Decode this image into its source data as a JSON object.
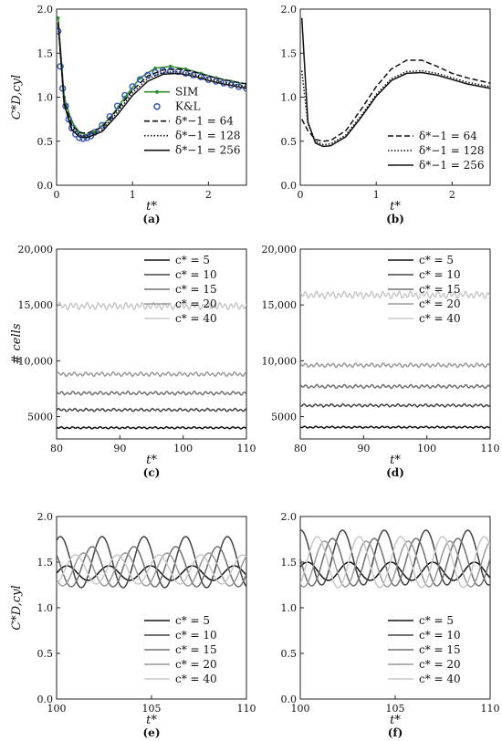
{
  "chart_data": [
    {
      "panel_label": "(a)",
      "type": "line",
      "xlabel": "t*",
      "ylabel": "C*D,cyl",
      "xlim": [
        0,
        2.5
      ],
      "ylim": [
        0,
        2.0
      ],
      "xticks": [
        "0",
        "1",
        "2"
      ],
      "yticks": [
        "0.0",
        "0.5",
        "1.0",
        "1.5",
        "2.0"
      ],
      "legend_position": "middle-right",
      "series": [
        {
          "name": "SIM",
          "color": "#2e8b2e",
          "style": "solid-marker",
          "x": [
            0.02,
            0.1,
            0.2,
            0.3,
            0.4,
            0.5,
            0.7,
            0.9,
            1.1,
            1.3,
            1.5,
            1.7,
            1.9,
            2.1,
            2.3,
            2.5
          ],
          "y": [
            1.9,
            1.0,
            0.72,
            0.6,
            0.57,
            0.6,
            0.76,
            1.0,
            1.22,
            1.33,
            1.35,
            1.32,
            1.27,
            1.22,
            1.18,
            1.15
          ]
        },
        {
          "name": "K&L",
          "color": "#3355bb",
          "style": "circles",
          "x": [
            0.02,
            0.05,
            0.08,
            0.12,
            0.16,
            0.2,
            0.25,
            0.3,
            0.35,
            0.4,
            0.45,
            0.5,
            0.6,
            0.7,
            0.8,
            0.9,
            1.0,
            1.1,
            1.2,
            1.3,
            1.4,
            1.5,
            1.6,
            1.7,
            1.8,
            1.9,
            2.0,
            2.1,
            2.2,
            2.3,
            2.4,
            2.5
          ],
          "y": [
            1.75,
            1.35,
            1.1,
            0.9,
            0.75,
            0.65,
            0.58,
            0.54,
            0.53,
            0.54,
            0.56,
            0.6,
            0.68,
            0.78,
            0.9,
            1.02,
            1.12,
            1.2,
            1.25,
            1.28,
            1.3,
            1.3,
            1.29,
            1.27,
            1.25,
            1.23,
            1.2,
            1.18,
            1.16,
            1.14,
            1.12,
            1.1
          ]
        },
        {
          "name": "δ*−1 = 64",
          "color": "#111111",
          "style": "dashed",
          "x": [
            0.02,
            0.1,
            0.2,
            0.3,
            0.4,
            0.6,
            0.8,
            1.0,
            1.2,
            1.4,
            1.6,
            1.8,
            2.0,
            2.2,
            2.5
          ],
          "y": [
            1.85,
            0.95,
            0.68,
            0.6,
            0.59,
            0.66,
            0.86,
            1.08,
            1.24,
            1.31,
            1.32,
            1.29,
            1.24,
            1.2,
            1.15
          ]
        },
        {
          "name": "δ*−1 = 128",
          "color": "#111111",
          "style": "dotted",
          "x": [
            0.02,
            0.1,
            0.2,
            0.3,
            0.4,
            0.6,
            0.8,
            1.0,
            1.2,
            1.4,
            1.6,
            1.8,
            2.0,
            2.2,
            2.5
          ],
          "y": [
            1.85,
            0.93,
            0.65,
            0.57,
            0.56,
            0.63,
            0.83,
            1.05,
            1.21,
            1.28,
            1.29,
            1.26,
            1.21,
            1.17,
            1.12
          ]
        },
        {
          "name": "δ*−1 = 256",
          "color": "#111111",
          "style": "solid",
          "x": [
            0.02,
            0.1,
            0.2,
            0.3,
            0.4,
            0.6,
            0.8,
            1.0,
            1.2,
            1.4,
            1.6,
            1.8,
            2.0,
            2.2,
            2.5
          ],
          "y": [
            1.85,
            0.92,
            0.63,
            0.55,
            0.54,
            0.61,
            0.8,
            1.02,
            1.18,
            1.26,
            1.27,
            1.24,
            1.19,
            1.15,
            1.1
          ]
        }
      ]
    },
    {
      "panel_label": "(b)",
      "type": "line",
      "xlabel": "t*",
      "ylabel": "",
      "xlim": [
        0,
        2.5
      ],
      "ylim": [
        0,
        2.0
      ],
      "xticks": [
        "0",
        "1",
        "2"
      ],
      "yticks": [
        "0.0",
        "0.5",
        "1.0",
        "1.5",
        "2.0"
      ],
      "legend_position": "lower-right",
      "series": [
        {
          "name": "δ*−1 = 64",
          "color": "#111111",
          "style": "dashed",
          "x": [
            0.02,
            0.1,
            0.2,
            0.3,
            0.4,
            0.6,
            0.8,
            1.0,
            1.2,
            1.4,
            1.6,
            1.8,
            2.0,
            2.2,
            2.5
          ],
          "y": [
            0.75,
            0.62,
            0.52,
            0.5,
            0.51,
            0.62,
            0.86,
            1.12,
            1.32,
            1.42,
            1.42,
            1.35,
            1.27,
            1.22,
            1.16
          ]
        },
        {
          "name": "δ*−1 = 128",
          "color": "#111111",
          "style": "dotted",
          "x": [
            0.02,
            0.1,
            0.2,
            0.3,
            0.4,
            0.6,
            0.8,
            1.0,
            1.2,
            1.4,
            1.6,
            1.8,
            2.0,
            2.2,
            2.5
          ],
          "y": [
            1.3,
            0.7,
            0.5,
            0.46,
            0.47,
            0.57,
            0.79,
            1.03,
            1.21,
            1.29,
            1.3,
            1.27,
            1.22,
            1.17,
            1.12
          ]
        },
        {
          "name": "δ*−1 = 256",
          "color": "#111111",
          "style": "solid",
          "x": [
            0.02,
            0.1,
            0.2,
            0.3,
            0.4,
            0.6,
            0.8,
            1.0,
            1.2,
            1.4,
            1.6,
            1.8,
            2.0,
            2.2,
            2.5
          ],
          "y": [
            1.9,
            0.72,
            0.48,
            0.44,
            0.45,
            0.55,
            0.77,
            1.01,
            1.19,
            1.27,
            1.28,
            1.25,
            1.2,
            1.15,
            1.1
          ]
        }
      ]
    },
    {
      "panel_label": "(c)",
      "type": "line",
      "xlabel": "t*",
      "ylabel": "# cells",
      "xlim": [
        80,
        110
      ],
      "ylim": [
        3000,
        20000
      ],
      "xticks": [
        "80",
        "90",
        "100",
        "110"
      ],
      "yticks": [
        "5000",
        "10,000",
        "15,000",
        "20,000"
      ],
      "legend_position": "top-right",
      "series": [
        {
          "name": "c* = 5",
          "color": "#111111",
          "style": "solid",
          "level": 4000,
          "ripple": 60
        },
        {
          "name": "c* = 10",
          "color": "#444444",
          "style": "solid",
          "level": 5600,
          "ripple": 90
        },
        {
          "name": "c* = 15",
          "color": "#707070",
          "style": "solid",
          "level": 7100,
          "ripple": 110
        },
        {
          "name": "c* = 20",
          "color": "#9a9a9a",
          "style": "solid",
          "level": 8800,
          "ripple": 130
        },
        {
          "name": "c* = 40",
          "color": "#c8c8c8",
          "style": "solid",
          "level": 14900,
          "ripple": 220
        }
      ]
    },
    {
      "panel_label": "(d)",
      "type": "line",
      "xlabel": "t*",
      "ylabel": "",
      "xlim": [
        80,
        110
      ],
      "ylim": [
        3000,
        20000
      ],
      "xticks": [
        "80",
        "90",
        "100",
        "110"
      ],
      "yticks": [
        "5000",
        "10,000",
        "15,000",
        "20,000"
      ],
      "legend_position": "top-right",
      "series": [
        {
          "name": "c* = 5",
          "color": "#111111",
          "style": "solid",
          "level": 4050,
          "ripple": 60
        },
        {
          "name": "c* = 10",
          "color": "#444444",
          "style": "solid",
          "level": 6000,
          "ripple": 90
        },
        {
          "name": "c* = 15",
          "color": "#707070",
          "style": "solid",
          "level": 7700,
          "ripple": 110
        },
        {
          "name": "c* = 20",
          "color": "#9a9a9a",
          "style": "solid",
          "level": 9600,
          "ripple": 130
        },
        {
          "name": "c* = 40",
          "color": "#c8c8c8",
          "style": "solid",
          "level": 15900,
          "ripple": 220
        }
      ]
    },
    {
      "panel_label": "(e)",
      "type": "line",
      "xlabel": "t*",
      "ylabel": "C*D,cyl",
      "xlim": [
        100,
        110
      ],
      "ylim": [
        0,
        2.0
      ],
      "xticks": [
        "100",
        "105",
        "110"
      ],
      "yticks": [
        "0.0",
        "0.5",
        "1.0",
        "1.5",
        "2.0"
      ],
      "legend_position": "lower-right",
      "series": [
        {
          "name": "c* = 5",
          "color": "#111111",
          "style": "solid",
          "mean": 1.38,
          "amp": 0.08,
          "period": 2.2,
          "phase": 0.0
        },
        {
          "name": "c* = 10",
          "color": "#444444",
          "style": "solid",
          "mean": 1.5,
          "amp": 0.28,
          "period": 2.2,
          "phase": 1.0
        },
        {
          "name": "c* = 15",
          "color": "#707070",
          "style": "solid",
          "mean": 1.45,
          "amp": 0.22,
          "period": 2.2,
          "phase": 2.5
        },
        {
          "name": "c* = 20",
          "color": "#9a9a9a",
          "style": "solid",
          "mean": 1.42,
          "amp": 0.18,
          "period": 2.2,
          "phase": 3.8
        },
        {
          "name": "c* = 40",
          "color": "#c8c8c8",
          "style": "solid",
          "mean": 1.42,
          "amp": 0.16,
          "period": 2.2,
          "phase": 5.0
        }
      ]
    },
    {
      "panel_label": "(f)",
      "type": "line",
      "xlabel": "t*",
      "ylabel": "",
      "xlim": [
        100,
        110
      ],
      "ylim": [
        0,
        2.0
      ],
      "xticks": [
        "100",
        "105",
        "110"
      ],
      "yticks": [
        "0.0",
        "0.5",
        "1.0",
        "1.5",
        "2.0"
      ],
      "legend_position": "lower-right",
      "series": [
        {
          "name": "c* = 5",
          "color": "#111111",
          "style": "solid",
          "mean": 1.4,
          "amp": 0.1,
          "period": 2.2,
          "phase": 0.5
        },
        {
          "name": "c* = 10",
          "color": "#444444",
          "style": "solid",
          "mean": 1.55,
          "amp": 0.3,
          "period": 2.2,
          "phase": 1.5
        },
        {
          "name": "c* = 15",
          "color": "#707070",
          "style": "solid",
          "mean": 1.5,
          "amp": 0.26,
          "period": 2.2,
          "phase": 3.0
        },
        {
          "name": "c* = 20",
          "color": "#9a9a9a",
          "style": "solid",
          "mean": 1.48,
          "amp": 0.25,
          "period": 2.2,
          "phase": 4.2
        },
        {
          "name": "c* = 40",
          "color": "#c8c8c8",
          "style": "solid",
          "mean": 1.5,
          "amp": 0.28,
          "period": 2.2,
          "phase": 5.3
        }
      ]
    }
  ]
}
